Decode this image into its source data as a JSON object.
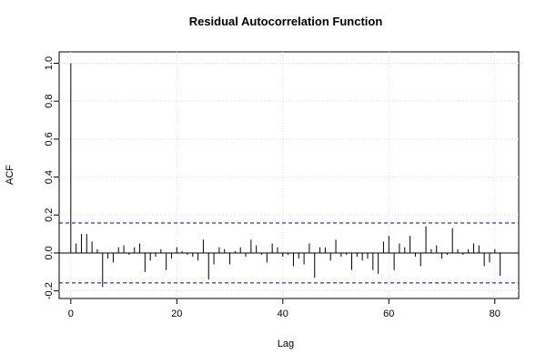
{
  "chart_data": {
    "type": "stem",
    "title": "Residual Autocorrelation Function",
    "x_label": "Lag",
    "y_label": "ACF",
    "x": [
      0,
      1,
      2,
      3,
      4,
      5,
      6,
      7,
      8,
      9,
      10,
      11,
      12,
      13,
      14,
      15,
      16,
      17,
      18,
      19,
      20,
      21,
      22,
      23,
      24,
      25,
      26,
      27,
      28,
      29,
      30,
      31,
      32,
      33,
      34,
      35,
      36,
      37,
      38,
      39,
      40,
      41,
      42,
      43,
      44,
      45,
      46,
      47,
      48,
      49,
      50,
      51,
      52,
      53,
      54,
      55,
      56,
      57,
      58,
      59,
      60,
      61,
      62,
      63,
      64,
      65,
      66,
      67,
      68,
      69,
      70,
      71,
      72,
      73,
      74,
      75,
      76,
      77,
      78,
      79,
      80,
      81
    ],
    "values": [
      1.0,
      0.05,
      0.1,
      0.1,
      0.06,
      0.02,
      -0.18,
      -0.03,
      -0.05,
      0.03,
      0.04,
      -0.01,
      0.03,
      0.05,
      -0.1,
      -0.04,
      -0.02,
      0.02,
      -0.09,
      -0.03,
      0.03,
      0.01,
      -0.01,
      -0.02,
      -0.04,
      0.07,
      -0.14,
      -0.06,
      0.03,
      0.02,
      -0.06,
      0.01,
      0.03,
      -0.02,
      0.07,
      0.04,
      -0.01,
      -0.05,
      0.05,
      0.03,
      -0.02,
      -0.01,
      -0.07,
      -0.03,
      -0.06,
      0.05,
      -0.13,
      0.03,
      0.03,
      -0.04,
      0.07,
      -0.02,
      -0.01,
      -0.09,
      -0.02,
      -0.04,
      -0.03,
      -0.09,
      -0.11,
      0.06,
      0.09,
      -0.09,
      0.05,
      0.03,
      0.09,
      -0.02,
      -0.07,
      0.14,
      0.02,
      0.04,
      -0.03,
      -0.01,
      0.13,
      0.02,
      -0.01,
      0.02,
      0.05,
      0.04,
      -0.07,
      -0.05,
      0.02,
      -0.12
    ],
    "color": "#000000",
    "ci_limit": 0.158,
    "ci_color": "#0000cc",
    "xlim": [
      -2.2,
      84.5
    ],
    "xticks": [
      0,
      20,
      40,
      60,
      80
    ],
    "ylim": [
      -0.24,
      1.06
    ],
    "yticks": [
      -0.2,
      {
        "value": 0,
        "label": "0.0"
      },
      0.2,
      0.4,
      0.6,
      0.8,
      {
        "value": 1,
        "label": "1.0"
      }
    ],
    "grid": true
  }
}
